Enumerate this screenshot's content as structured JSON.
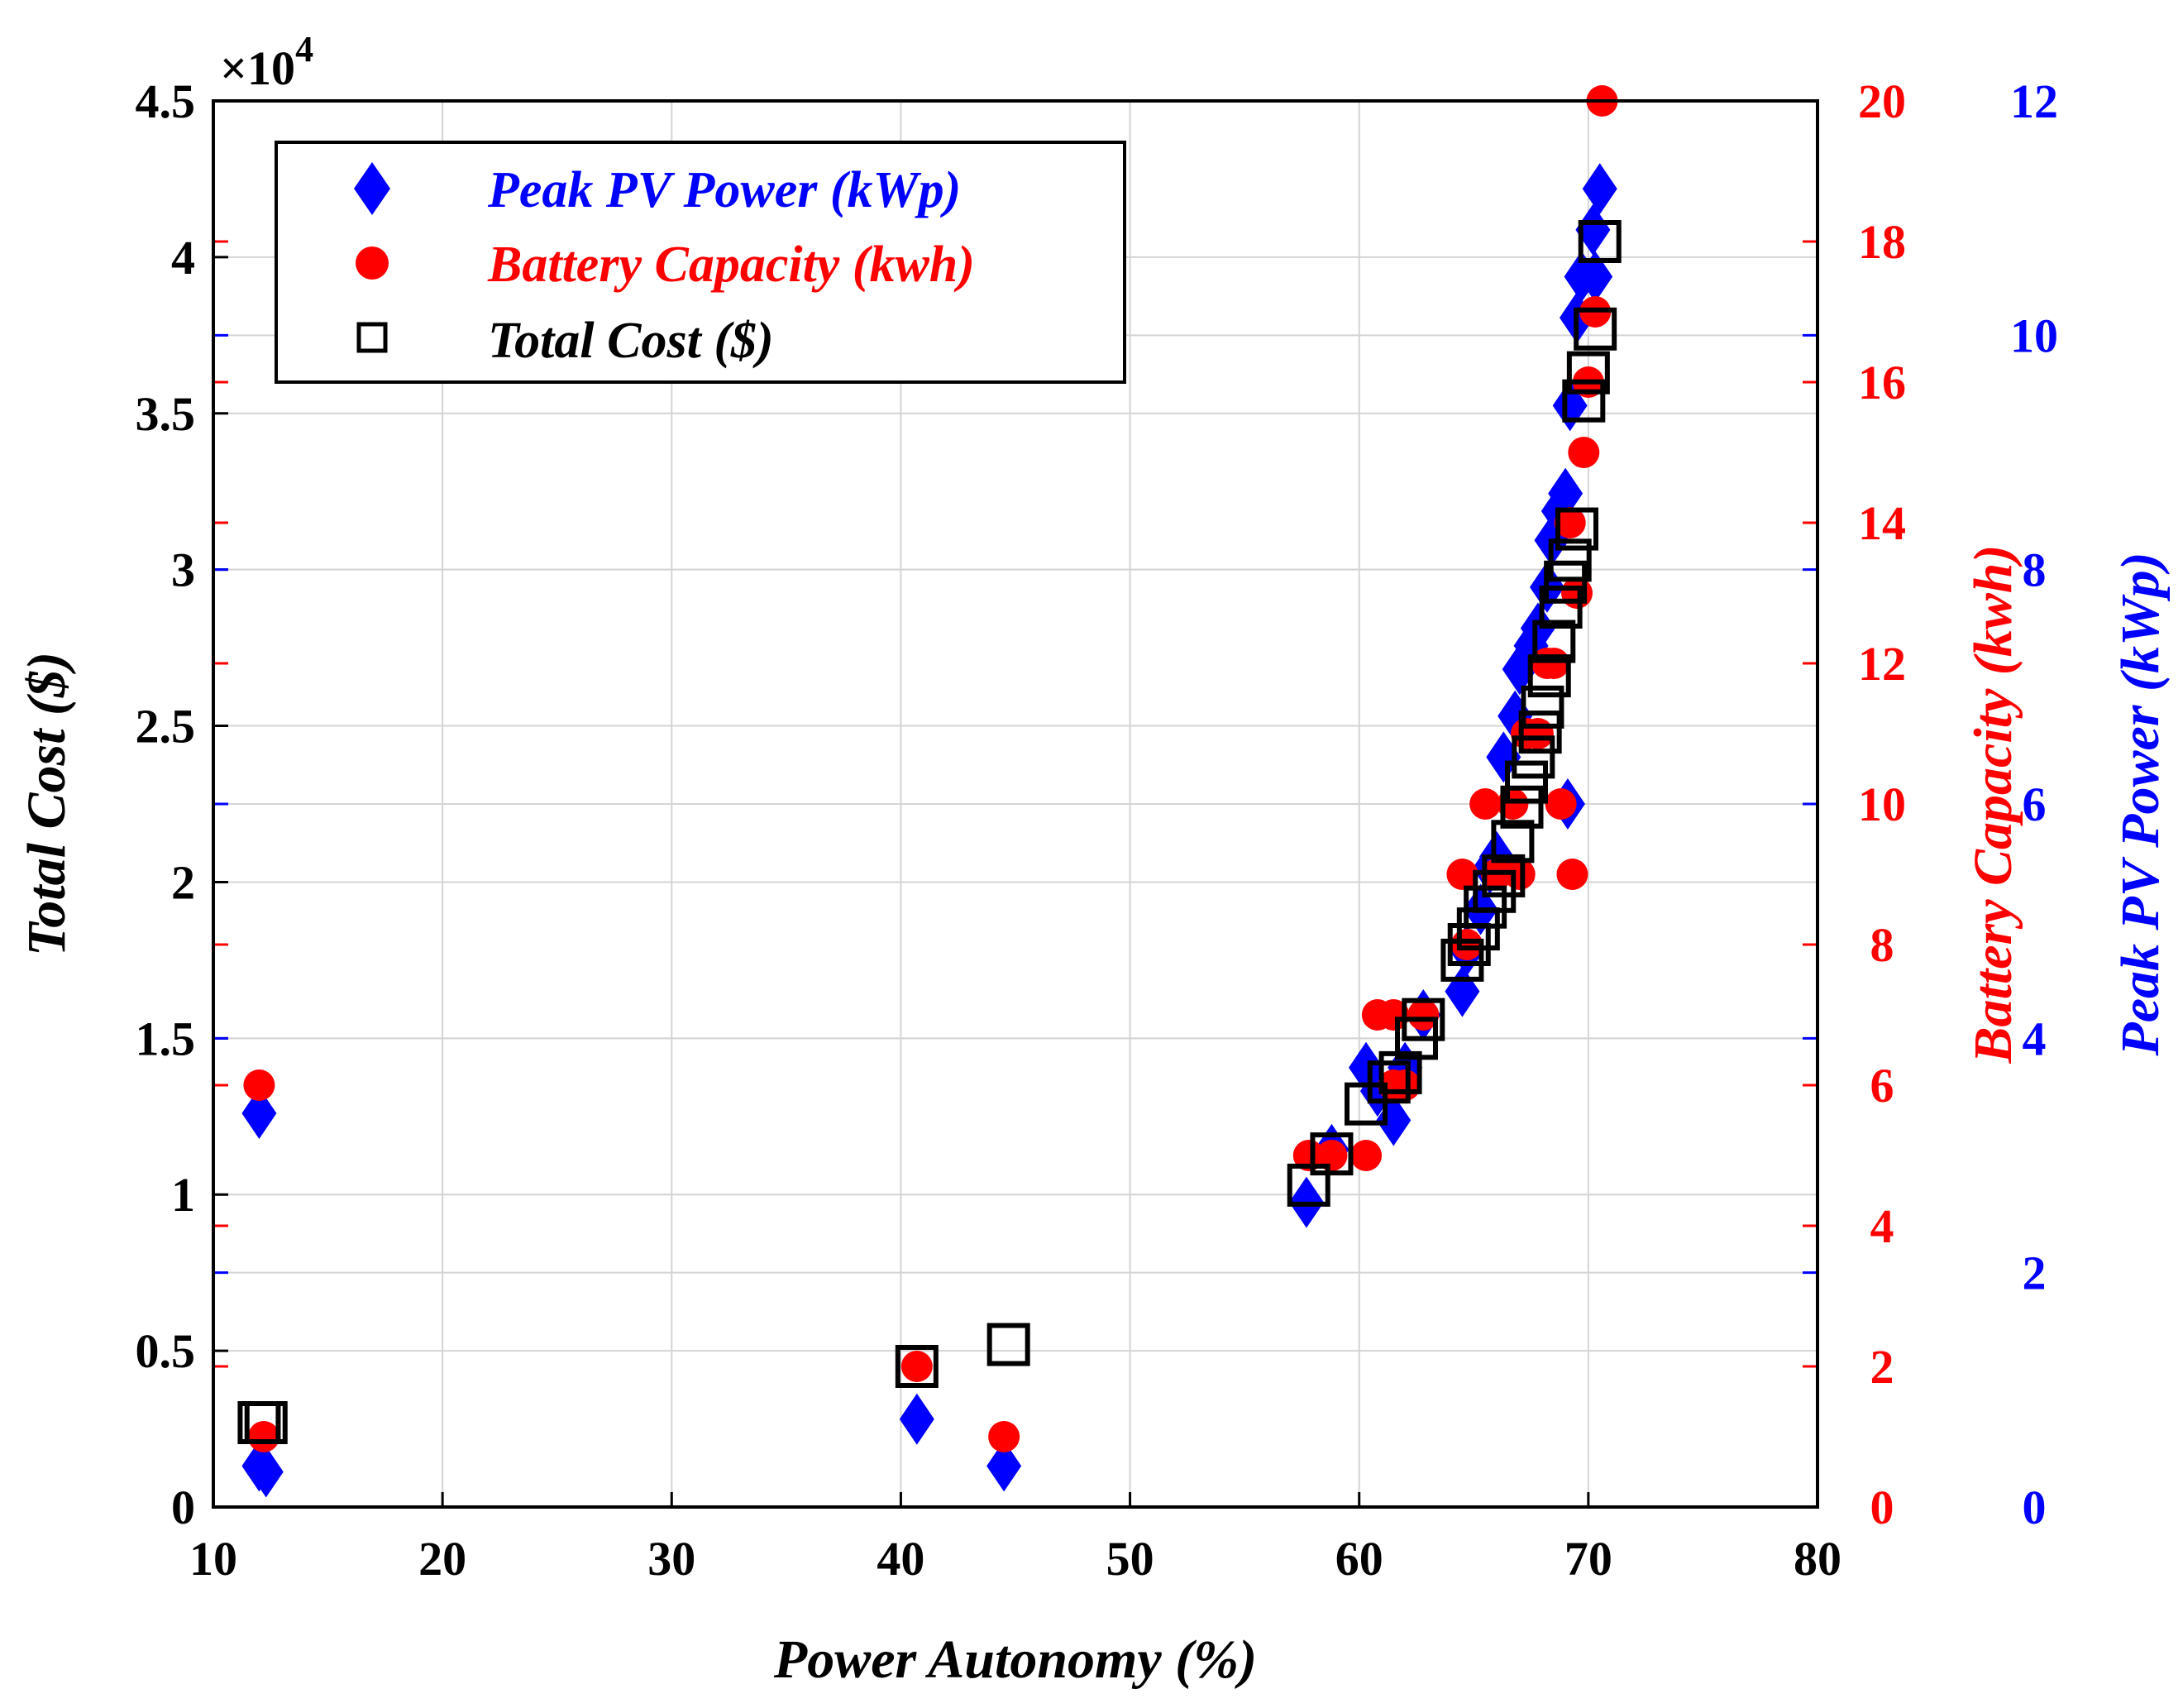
{
  "chart_data": {
    "type": "scatter",
    "xlabel": "Power Autonomy (%)",
    "xlim": [
      10,
      80
    ],
    "x_ticks": [
      "10",
      "20",
      "30",
      "40",
      "50",
      "60",
      "70",
      "80"
    ],
    "axes": {
      "total_cost": {
        "label": "Total Cost ($)",
        "side": "left",
        "lim": [
          0,
          45000
        ],
        "multiplier_label": "×10",
        "multiplier_exponent": "4",
        "ticks": [
          "0",
          "0.5",
          "1",
          "1.5",
          "2",
          "2.5",
          "3",
          "3.5",
          "4",
          "4.5"
        ],
        "color": "#000000"
      },
      "battery": {
        "label": "Battery Capacity (kwh)",
        "side": "right",
        "lim": [
          0,
          20
        ],
        "ticks": [
          "0",
          "2",
          "4",
          "6",
          "8",
          "10",
          "12",
          "14",
          "16",
          "18",
          "20"
        ],
        "color": "#ff0000"
      },
      "pv": {
        "label": "Peak PV Power (kWp)",
        "side": "right-outer",
        "lim": [
          0,
          12
        ],
        "ticks": [
          "0",
          "2",
          "4",
          "6",
          "8",
          "10",
          "12"
        ],
        "color": "#0000ff"
      }
    },
    "grid": true,
    "legend_position": "top-left",
    "series": [
      {
        "name": "Peak PV Power (kWp)",
        "axis": "pv",
        "marker": "diamond",
        "color": "#0000ff",
        "points": [
          [
            12.0,
            3.36
          ],
          [
            12.0,
            0.35
          ],
          [
            12.3,
            0.3
          ],
          [
            40.7,
            0.75
          ],
          [
            44.5,
            0.35
          ],
          [
            57.7,
            2.6
          ],
          [
            58.8,
            3.05
          ],
          [
            60.3,
            3.75
          ],
          [
            60.8,
            3.55
          ],
          [
            61.5,
            3.3
          ],
          [
            62.0,
            3.75
          ],
          [
            62.8,
            4.2
          ],
          [
            64.5,
            4.4
          ],
          [
            64.7,
            4.75
          ],
          [
            65.3,
            5.1
          ],
          [
            65.7,
            5.45
          ],
          [
            66.0,
            5.55
          ],
          [
            66.3,
            6.4
          ],
          [
            66.8,
            6.75
          ],
          [
            67.0,
            7.15
          ],
          [
            67.5,
            7.35
          ],
          [
            67.8,
            7.5
          ],
          [
            68.2,
            7.85
          ],
          [
            68.4,
            8.25
          ],
          [
            68.7,
            8.5
          ],
          [
            69.0,
            8.65
          ],
          [
            69.1,
            6.0
          ],
          [
            69.2,
            9.4
          ],
          [
            69.5,
            10.15
          ],
          [
            69.7,
            10.5
          ],
          [
            70.2,
            10.9
          ],
          [
            70.3,
            10.5
          ],
          [
            70.5,
            11.25
          ]
        ]
      },
      {
        "name": "Battery Capacity (kwh)",
        "axis": "battery",
        "marker": "circle",
        "color": "#ff0000",
        "points": [
          [
            12.0,
            6.0
          ],
          [
            12.2,
            1.0
          ],
          [
            40.7,
            2.0
          ],
          [
            44.5,
            1.0
          ],
          [
            57.8,
            5.0
          ],
          [
            58.8,
            5.0
          ],
          [
            60.3,
            5.0
          ],
          [
            60.8,
            7.0
          ],
          [
            61.5,
            7.0
          ],
          [
            61.5,
            6.0
          ],
          [
            62.0,
            6.0
          ],
          [
            62.8,
            7.0
          ],
          [
            64.5,
            9.0
          ],
          [
            64.7,
            8.0
          ],
          [
            65.5,
            10.0
          ],
          [
            66.0,
            9.0
          ],
          [
            66.7,
            10.0
          ],
          [
            67.0,
            9.0
          ],
          [
            67.3,
            11.0
          ],
          [
            67.8,
            11.0
          ],
          [
            68.2,
            12.0
          ],
          [
            68.5,
            12.0
          ],
          [
            68.8,
            10.0
          ],
          [
            69.2,
            14.0
          ],
          [
            69.3,
            9.0
          ],
          [
            69.5,
            13.0
          ],
          [
            69.8,
            15.0
          ],
          [
            70.0,
            16.0
          ],
          [
            70.3,
            17.0
          ],
          [
            70.6,
            20.0
          ]
        ]
      },
      {
        "name": "Total Cost ($)",
        "axis": "total_cost",
        "marker": "square",
        "color": "#000000",
        "points": [
          [
            12.0,
            2700
          ],
          [
            12.3,
            2700
          ],
          [
            40.7,
            4500
          ],
          [
            44.7,
            5200
          ],
          [
            57.8,
            10300
          ],
          [
            58.8,
            11300
          ],
          [
            60.3,
            12900
          ],
          [
            61.3,
            13600
          ],
          [
            61.8,
            13900
          ],
          [
            62.5,
            15000
          ],
          [
            62.8,
            15600
          ],
          [
            64.5,
            17500
          ],
          [
            64.8,
            18000
          ],
          [
            65.2,
            18500
          ],
          [
            65.5,
            19200
          ],
          [
            65.9,
            19700
          ],
          [
            66.3,
            20200
          ],
          [
            66.7,
            21300
          ],
          [
            67.1,
            22400
          ],
          [
            67.3,
            23200
          ],
          [
            67.6,
            24000
          ],
          [
            67.9,
            24800
          ],
          [
            68.0,
            25600
          ],
          [
            68.3,
            26600
          ],
          [
            68.5,
            27700
          ],
          [
            68.8,
            28800
          ],
          [
            69.0,
            29600
          ],
          [
            69.2,
            30300
          ],
          [
            69.5,
            31300
          ],
          [
            69.8,
            35400
          ],
          [
            70.0,
            36300
          ],
          [
            70.3,
            37700
          ],
          [
            70.5,
            40500
          ]
        ]
      }
    ]
  }
}
